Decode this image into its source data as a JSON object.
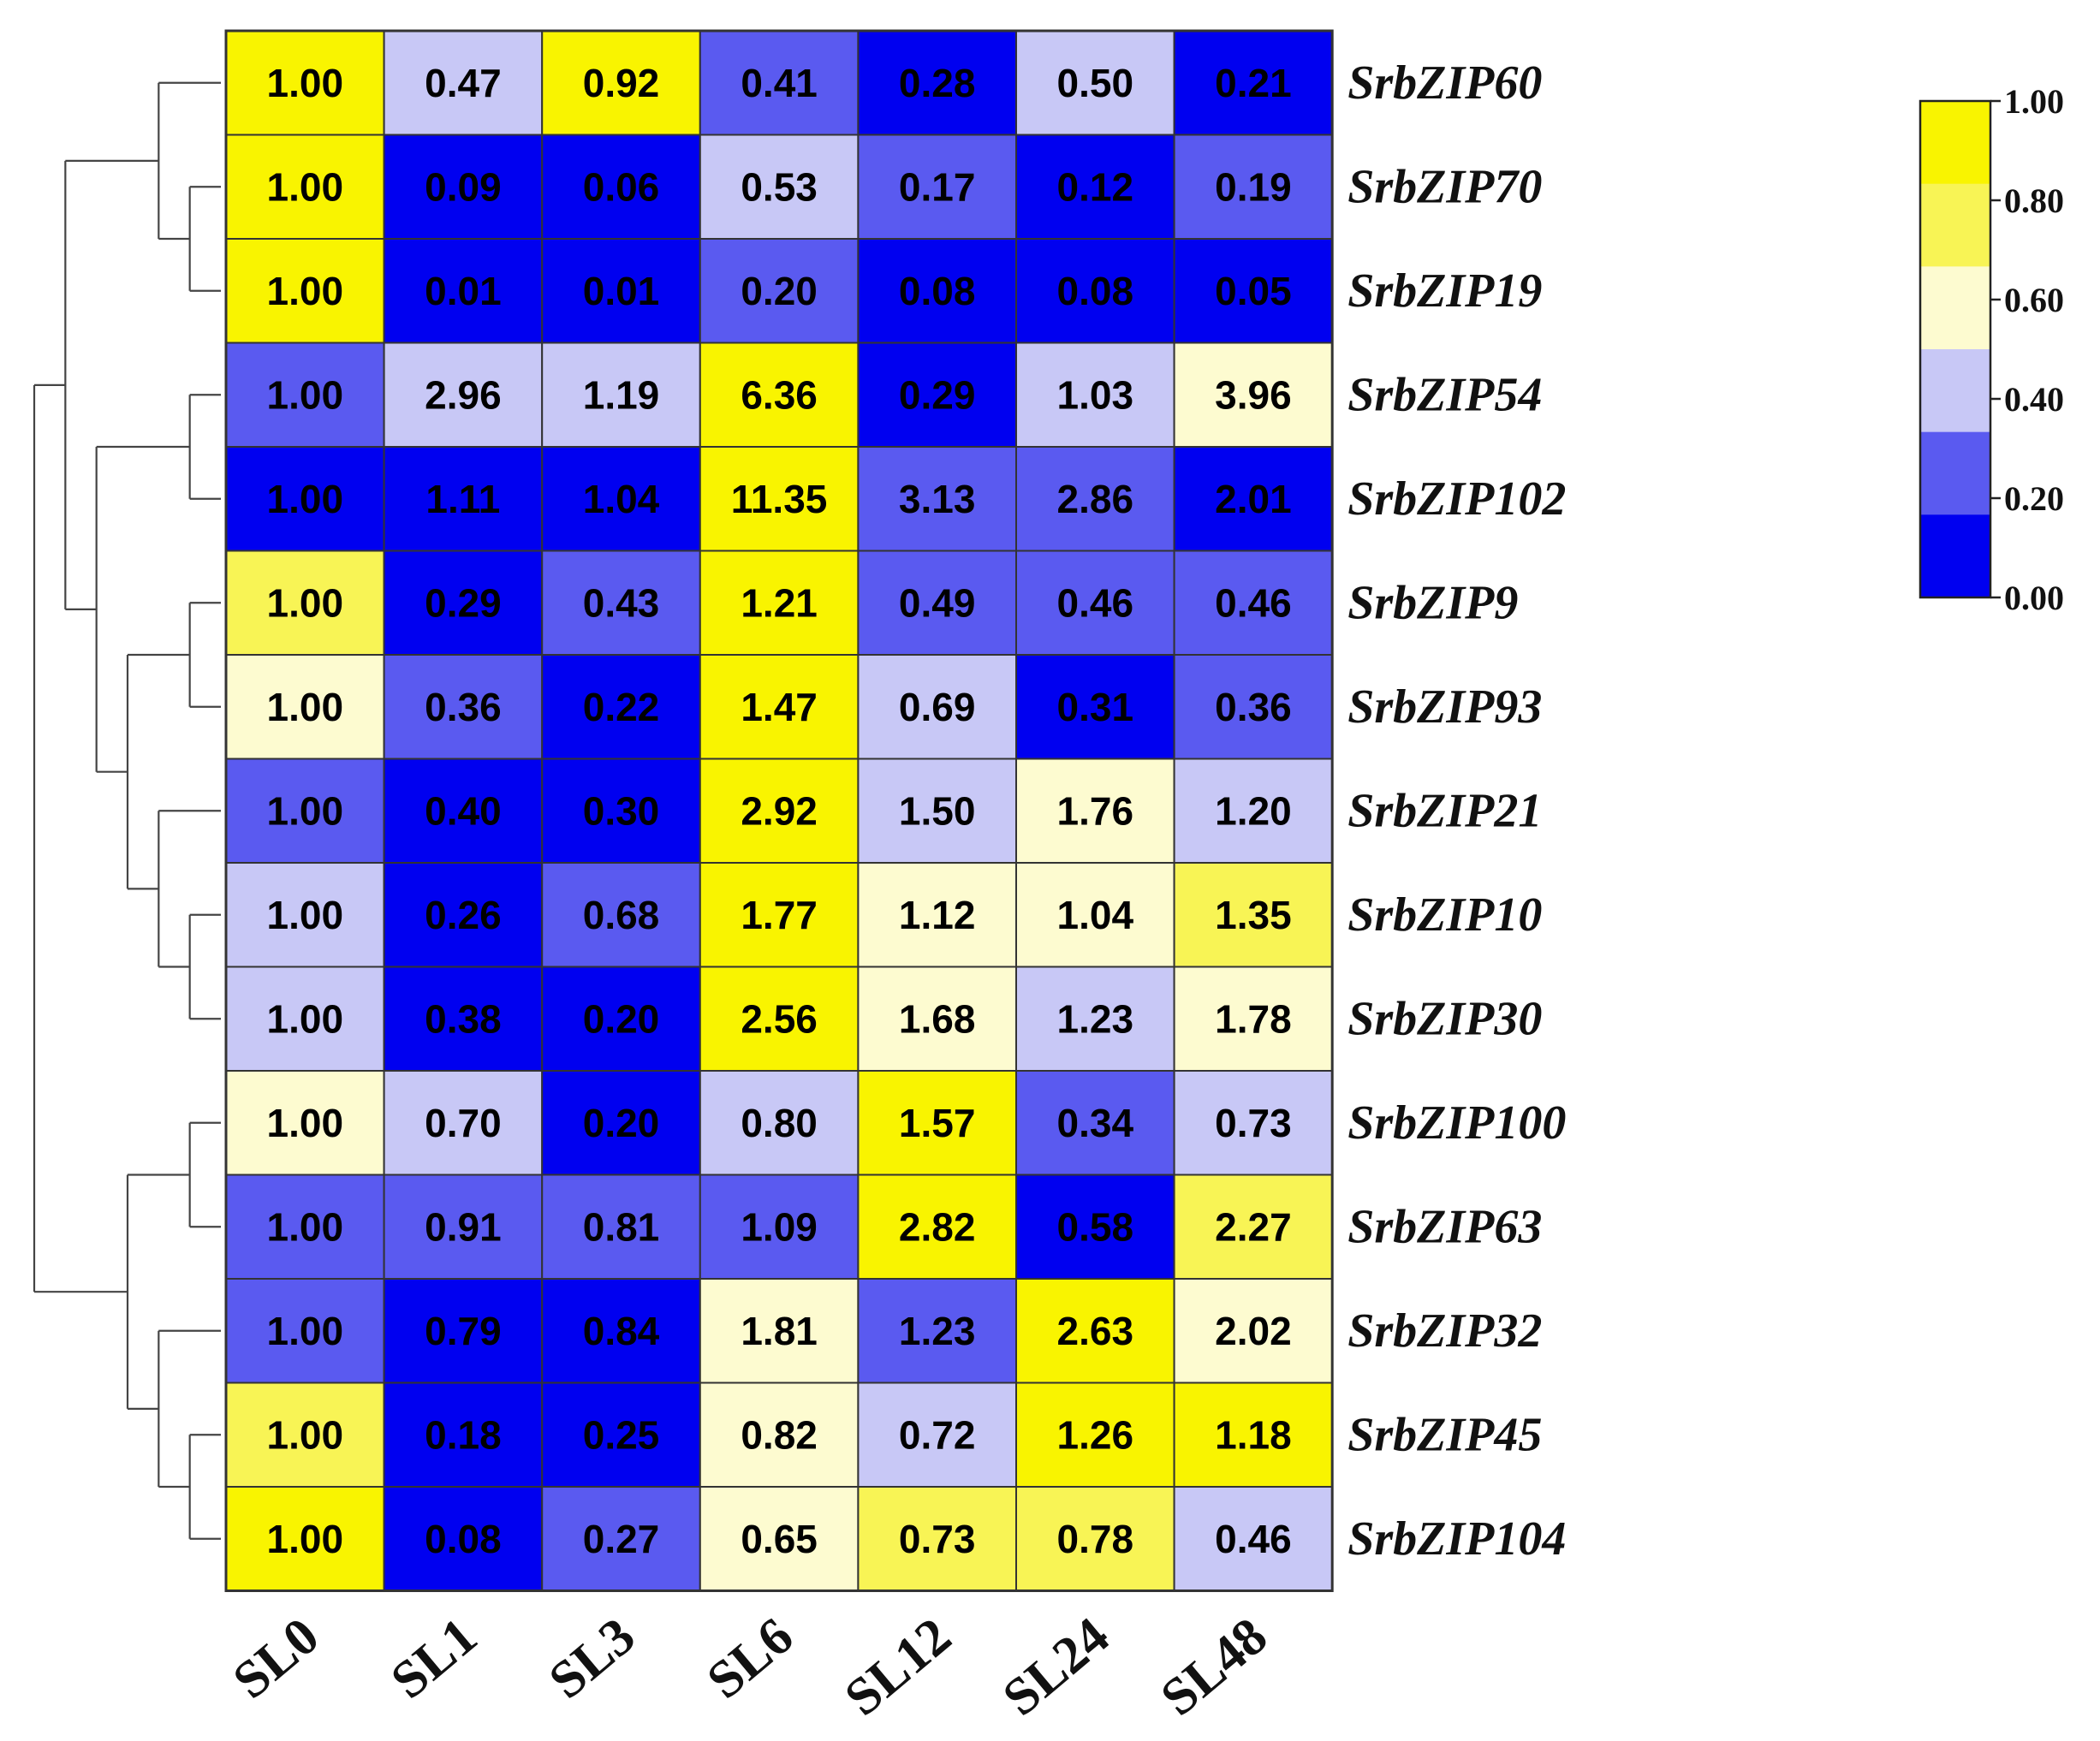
{
  "chart_data": {
    "type": "heatmap",
    "title": "",
    "xlabel": "",
    "ylabel": "",
    "columns": [
      "SL0",
      "SL1",
      "SL3",
      "SL6",
      "SL12",
      "SL24",
      "SL48"
    ],
    "rows": [
      {
        "gene": "SrbZIP60",
        "values": [
          "1.00",
          "0.47",
          "0.92",
          "0.41",
          "0.28",
          "0.50",
          "0.21"
        ]
      },
      {
        "gene": "SrbZIP70",
        "values": [
          "1.00",
          "0.09",
          "0.06",
          "0.53",
          "0.17",
          "0.12",
          "0.19"
        ]
      },
      {
        "gene": "SrbZIP19",
        "values": [
          "1.00",
          "0.01",
          "0.01",
          "0.20",
          "0.08",
          "0.08",
          "0.05"
        ]
      },
      {
        "gene": "SrbZIP54",
        "values": [
          "1.00",
          "2.96",
          "1.19",
          "6.36",
          "0.29",
          "1.03",
          "3.96"
        ]
      },
      {
        "gene": "SrbZIP102",
        "values": [
          "1.00",
          "1.11",
          "1.04",
          "11.35",
          "3.13",
          "2.86",
          "2.01"
        ]
      },
      {
        "gene": "SrbZIP9",
        "values": [
          "1.00",
          "0.29",
          "0.43",
          "1.21",
          "0.49",
          "0.46",
          "0.46"
        ]
      },
      {
        "gene": "SrbZIP93",
        "values": [
          "1.00",
          "0.36",
          "0.22",
          "1.47",
          "0.69",
          "0.31",
          "0.36"
        ]
      },
      {
        "gene": "SrbZIP21",
        "values": [
          "1.00",
          "0.40",
          "0.30",
          "2.92",
          "1.50",
          "1.76",
          "1.20"
        ]
      },
      {
        "gene": "SrbZIP10",
        "values": [
          "1.00",
          "0.26",
          "0.68",
          "1.77",
          "1.12",
          "1.04",
          "1.35"
        ]
      },
      {
        "gene": "SrbZIP30",
        "values": [
          "1.00",
          "0.38",
          "0.20",
          "2.56",
          "1.68",
          "1.23",
          "1.78"
        ]
      },
      {
        "gene": "SrbZIP100",
        "values": [
          "1.00",
          "0.70",
          "0.20",
          "0.80",
          "1.57",
          "0.34",
          "0.73"
        ]
      },
      {
        "gene": "SrbZIP63",
        "values": [
          "1.00",
          "0.91",
          "0.81",
          "1.09",
          "2.82",
          "0.58",
          "2.27"
        ]
      },
      {
        "gene": "SrbZIP32",
        "values": [
          "1.00",
          "0.79",
          "0.84",
          "1.81",
          "1.23",
          "2.63",
          "2.02"
        ]
      },
      {
        "gene": "SrbZIP45",
        "values": [
          "1.00",
          "0.18",
          "0.25",
          "0.82",
          "0.72",
          "1.26",
          "1.18"
        ]
      },
      {
        "gene": "SrbZIP104",
        "values": [
          "1.00",
          "0.08",
          "0.27",
          "0.65",
          "0.73",
          "0.78",
          "0.46"
        ]
      }
    ],
    "cell_levels": [
      [
        5,
        2,
        5,
        1,
        0,
        2,
        0
      ],
      [
        5,
        0,
        0,
        2,
        1,
        0,
        1
      ],
      [
        5,
        0,
        0,
        1,
        0,
        0,
        0
      ],
      [
        1,
        2,
        2,
        5,
        0,
        2,
        3
      ],
      [
        0,
        0,
        0,
        5,
        1,
        1,
        0
      ],
      [
        4,
        0,
        1,
        5,
        1,
        1,
        1
      ],
      [
        3,
        1,
        0,
        5,
        2,
        0,
        1
      ],
      [
        1,
        0,
        0,
        5,
        2,
        3,
        2
      ],
      [
        2,
        0,
        1,
        5,
        3,
        3,
        4
      ],
      [
        2,
        0,
        0,
        5,
        3,
        2,
        3
      ],
      [
        3,
        2,
        0,
        2,
        5,
        1,
        2
      ],
      [
        1,
        1,
        1,
        1,
        5,
        0,
        4
      ],
      [
        1,
        0,
        0,
        3,
        1,
        5,
        3
      ],
      [
        4,
        0,
        0,
        3,
        2,
        5,
        5
      ],
      [
        5,
        0,
        1,
        3,
        4,
        4,
        2
      ]
    ],
    "legend": {
      "ticks": [
        "1.00",
        "0.80",
        "0.60",
        "0.40",
        "0.20",
        "0.00"
      ],
      "placement": "top-right"
    },
    "colors": {
      "levels": [
        "#0000f0",
        "#5a5af0",
        "#c8c8f6",
        "#fdfbd0",
        "#f8f455",
        "#f9f400"
      ],
      "text_dark": "#000000",
      "text_light": "#000000",
      "grid": "#333333",
      "dendrogram": "#444444"
    },
    "dendrogram": {
      "tree": [
        [
          [
            "SrbZIP60",
            [
              "SrbZIP70",
              "SrbZIP19"
            ]
          ],
          [
            [
              "SrbZIP54",
              "SrbZIP102"
            ],
            [
              [
                "SrbZIP9",
                "SrbZIP93"
              ],
              [
                "SrbZIP21",
                [
                  "SrbZIP10",
                  "SrbZIP30"
                ]
              ]
            ]
          ]
        ],
        [
          [
            "SrbZIP100",
            "SrbZIP63"
          ],
          [
            "SrbZIP32",
            [
              "SrbZIP45",
              "SrbZIP104"
            ]
          ]
        ]
      ]
    }
  }
}
